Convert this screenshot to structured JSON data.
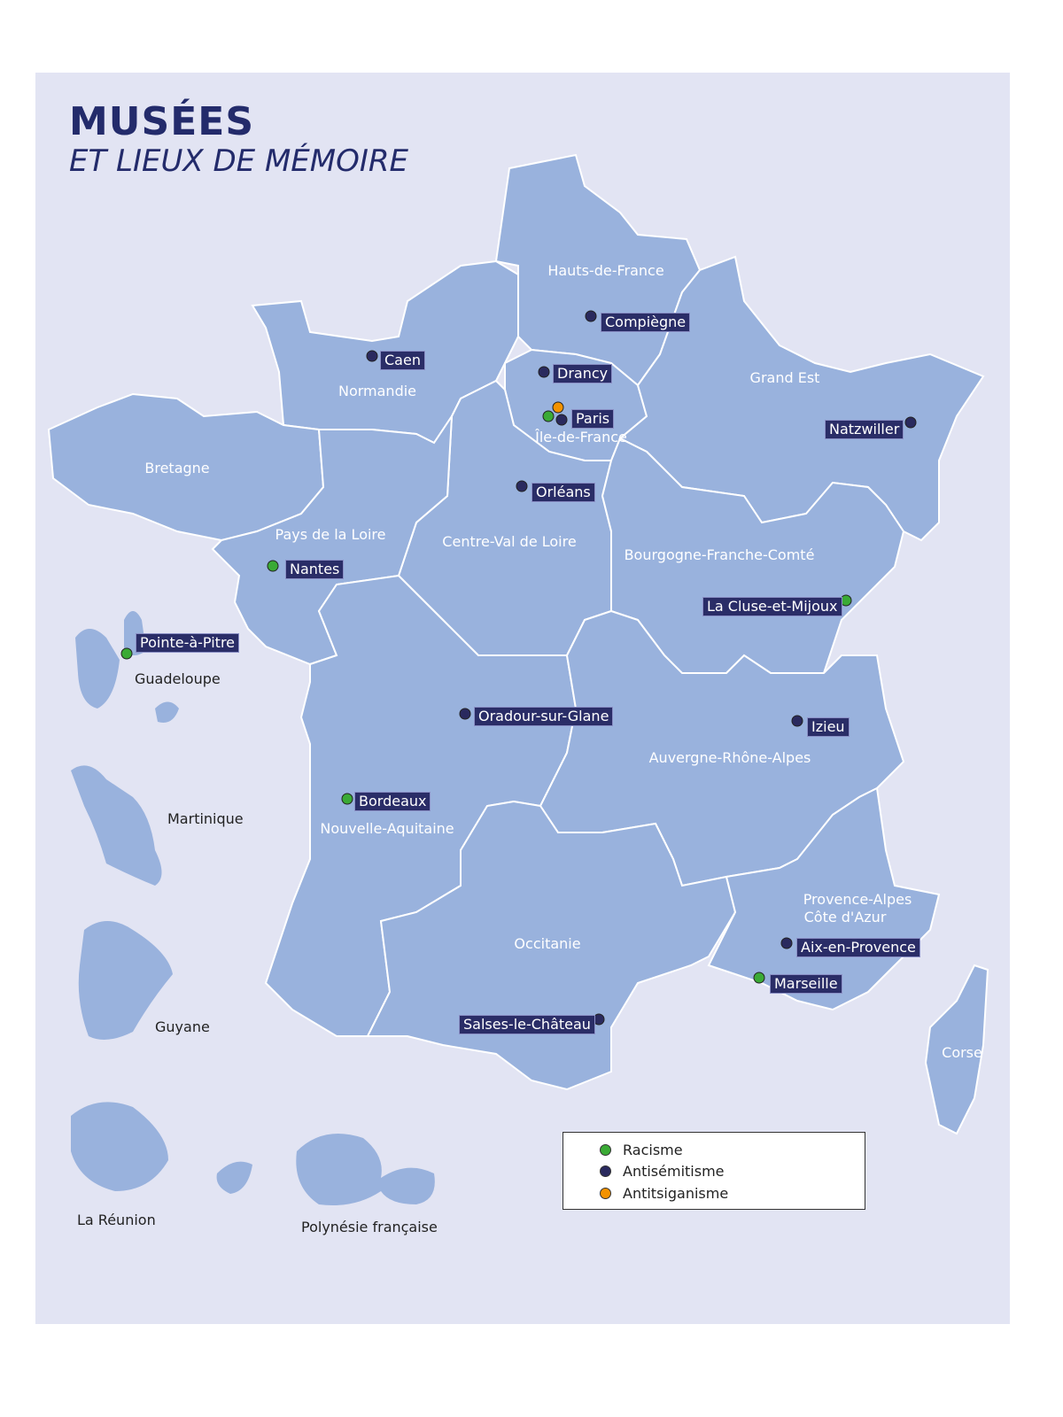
{
  "title": "MUSÉES",
  "subtitle": "ET LIEUX DE MÉMOIRE",
  "colors": {
    "racisme": "#3aaa35",
    "antisemitisme": "#2a2a5e",
    "antitsiganisme": "#f39200",
    "region": "#99b2dd",
    "background": "#e2e4f3"
  },
  "regions": [
    "Hauts-de-France",
    "Normandie",
    "Grand Est",
    "Île-de-France",
    "Bretagne",
    "Pays de la Loire",
    "Centre-Val de Loire",
    "Bourgogne-Franche-Comté",
    "Nouvelle-Aquitaine",
    "Auvergne-Rhône-Alpes",
    "Occitanie",
    "Provence-Alpes",
    "Côte d'Azur",
    "Corse"
  ],
  "overseas": [
    "Guadeloupe",
    "Martinique",
    "Guyane",
    "La Réunion",
    "Polynésie française"
  ],
  "places": [
    {
      "name": "Compiègne",
      "category": "Antisémitisme"
    },
    {
      "name": "Caen",
      "category": "Antisémitisme"
    },
    {
      "name": "Drancy",
      "category": "Antisémitisme"
    },
    {
      "name": "Paris",
      "category": "Racisme, Antisémitisme, Antitsiganisme"
    },
    {
      "name": "Natzwiller",
      "category": "Antisémitisme"
    },
    {
      "name": "Orléans",
      "category": "Antisémitisme"
    },
    {
      "name": "Nantes",
      "category": "Racisme"
    },
    {
      "name": "La Cluse-et-Mijoux",
      "category": "Racisme"
    },
    {
      "name": "Pointe-à-Pitre",
      "category": "Racisme"
    },
    {
      "name": "Oradour-sur-Glane",
      "category": "Antisémitisme"
    },
    {
      "name": "Izieu",
      "category": "Antisémitisme"
    },
    {
      "name": "Bordeaux",
      "category": "Racisme"
    },
    {
      "name": "Aix-en-Provence",
      "category": "Antisémitisme"
    },
    {
      "name": "Marseille",
      "category": "Racisme"
    },
    {
      "name": "Salses-le-Château",
      "category": "Antisémitisme"
    }
  ],
  "legend": [
    "Racisme",
    "Antisémitisme",
    "Antitsiganisme"
  ]
}
